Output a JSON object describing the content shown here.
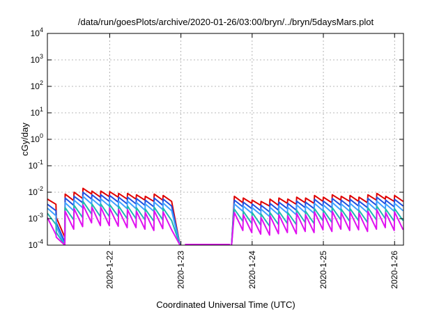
{
  "chart_data": {
    "type": "line",
    "title": "/data/run/goesPlots/archive/2020-01-26/03:00/bryn/../bryn/5daysMars.plot",
    "xlabel": "Coordinated Universal Time (UTC)",
    "ylabel": "cGy/day",
    "y_scale": "log",
    "ylim": [
      0.0001,
      10000
    ],
    "xlim": [
      "2020-01-21 03:00",
      "2020-01-26 03:00"
    ],
    "grid": true,
    "legend": "none",
    "y_ticks": [
      {
        "base": "10",
        "exp": "-4",
        "value": 0.0001
      },
      {
        "base": "10",
        "exp": "-3",
        "value": 0.001
      },
      {
        "base": "10",
        "exp": "-2",
        "value": 0.01
      },
      {
        "base": "10",
        "exp": "-1",
        "value": 0.1
      },
      {
        "base": "10",
        "exp": "0",
        "value": 1
      },
      {
        "base": "10",
        "exp": "1",
        "value": 10
      },
      {
        "base": "10",
        "exp": "2",
        "value": 100
      },
      {
        "base": "10",
        "exp": "3",
        "value": 1000
      },
      {
        "base": "10",
        "exp": "4",
        "value": 10000
      }
    ],
    "x_ticks": [
      {
        "label": "2020-1-22",
        "value": "2020-01-22 00:00"
      },
      {
        "label": "2020-1-23",
        "value": "2020-01-23 00:00"
      },
      {
        "label": "2020-1-24",
        "value": "2020-01-24 00:00"
      },
      {
        "label": "2020-1-25",
        "value": "2020-01-25 00:00"
      },
      {
        "label": "2020-1-26",
        "value": "2020-01-26 00:00"
      }
    ],
    "data_gap": [
      "2020-01-22 23:00",
      "2020-01-23 18:00"
    ],
    "sawtooth_period_hours": 3,
    "series": [
      {
        "color": "#e00000",
        "values": [
          [
            0.0055,
            0.0035
          ],
          [
            0.0011,
            0.0002
          ],
          [
            0.0085,
            0.0048
          ],
          [
            0.01,
            0.0058
          ],
          [
            0.014,
            0.0085
          ],
          [
            0.011,
            0.0065
          ],
          [
            0.011,
            0.0068
          ],
          [
            0.0105,
            0.0065
          ],
          [
            0.009,
            0.0055
          ],
          [
            0.009,
            0.0055
          ],
          [
            0.008,
            0.005
          ],
          [
            0.007,
            0.0045
          ],
          [
            0.0085,
            0.005
          ],
          [
            0.0075,
            0.0045
          ],
          [
            0.007,
            0.004
          ],
          [
            0.006,
            0.0038
          ],
          [
            0.005,
            0.0032
          ],
          [
            0.0045,
            0.003
          ],
          [
            0.0055,
            0.0032
          ],
          [
            0.006,
            0.0038
          ],
          [
            0.0055,
            0.0035
          ],
          [
            0.0065,
            0.004
          ],
          [
            0.006,
            0.0038
          ],
          [
            0.0075,
            0.0045
          ],
          [
            0.0065,
            0.004
          ],
          [
            0.008,
            0.005
          ],
          [
            0.007,
            0.0045
          ],
          [
            0.0075,
            0.0045
          ],
          [
            0.0065,
            0.004
          ],
          [
            0.008,
            0.005
          ],
          [
            0.009,
            0.0055
          ],
          [
            0.007,
            0.0045
          ],
          [
            0.0075,
            0.0045
          ],
          [
            0.0065,
            0.004
          ],
          [
            0.0065,
            0.004
          ],
          [
            0.0058,
            0.0036
          ]
        ]
      },
      {
        "color": "#1f4fe0",
        "values": [
          [
            0.0035,
            0.002
          ],
          [
            0.0007,
            0.00013
          ],
          [
            0.006,
            0.0032
          ],
          [
            0.007,
            0.004
          ],
          [
            0.01,
            0.0055
          ],
          [
            0.008,
            0.0045
          ],
          [
            0.008,
            0.0045
          ],
          [
            0.0075,
            0.0042
          ],
          [
            0.0065,
            0.0036
          ],
          [
            0.0065,
            0.0036
          ],
          [
            0.0058,
            0.0032
          ],
          [
            0.005,
            0.0028
          ],
          [
            0.006,
            0.0032
          ],
          [
            0.0055,
            0.003
          ],
          [
            0.005,
            0.0028
          ],
          [
            0.0042,
            0.0024
          ],
          [
            0.0036,
            0.002
          ],
          [
            0.0032,
            0.0018
          ],
          [
            0.0038,
            0.0021
          ],
          [
            0.0042,
            0.0024
          ],
          [
            0.0038,
            0.0021
          ],
          [
            0.0046,
            0.0026
          ],
          [
            0.0042,
            0.0024
          ],
          [
            0.0054,
            0.003
          ],
          [
            0.0046,
            0.0026
          ],
          [
            0.0058,
            0.0032
          ],
          [
            0.005,
            0.0028
          ],
          [
            0.0054,
            0.003
          ],
          [
            0.0046,
            0.0026
          ],
          [
            0.0058,
            0.0032
          ],
          [
            0.0065,
            0.0036
          ],
          [
            0.005,
            0.0028
          ],
          [
            0.0054,
            0.003
          ],
          [
            0.0046,
            0.0026
          ],
          [
            0.0046,
            0.0026
          ],
          [
            0.004,
            0.0022
          ]
        ]
      },
      {
        "color": "#3fa0ff",
        "values": [
          [
            0.0025,
            0.0013
          ],
          [
            0.0005,
            0.0001
          ],
          [
            0.004,
            0.002
          ],
          [
            0.005,
            0.0026
          ],
          [
            0.007,
            0.0036
          ],
          [
            0.0056,
            0.003
          ],
          [
            0.0056,
            0.003
          ],
          [
            0.0053,
            0.0028
          ],
          [
            0.0046,
            0.0024
          ],
          [
            0.0046,
            0.0024
          ],
          [
            0.0041,
            0.0021
          ],
          [
            0.0036,
            0.0019
          ],
          [
            0.0042,
            0.0022
          ],
          [
            0.0039,
            0.002
          ],
          [
            0.0036,
            0.0019
          ],
          [
            0.003,
            0.0016
          ],
          [
            0.0026,
            0.0014
          ],
          [
            0.0023,
            0.0012
          ],
          [
            0.0027,
            0.0014
          ],
          [
            0.003,
            0.0016
          ],
          [
            0.0027,
            0.0014
          ],
          [
            0.0033,
            0.0017
          ],
          [
            0.003,
            0.0016
          ],
          [
            0.0038,
            0.002
          ],
          [
            0.0033,
            0.0017
          ],
          [
            0.0041,
            0.0021
          ],
          [
            0.0036,
            0.0019
          ],
          [
            0.0038,
            0.002
          ],
          [
            0.0033,
            0.0017
          ],
          [
            0.0041,
            0.0021
          ],
          [
            0.0046,
            0.0024
          ],
          [
            0.0036,
            0.0019
          ],
          [
            0.0038,
            0.002
          ],
          [
            0.0033,
            0.0017
          ],
          [
            0.0033,
            0.0017
          ],
          [
            0.0028,
            0.0015
          ]
        ]
      },
      {
        "color": "#20b8b0",
        "values": [
          [
            0.0016,
            0.0006
          ],
          [
            0.0003,
            0.0001
          ],
          [
            0.0026,
            0.0009
          ],
          [
            0.0032,
            0.0011
          ],
          [
            0.0045,
            0.0015
          ],
          [
            0.0036,
            0.0012
          ],
          [
            0.0036,
            0.0012
          ],
          [
            0.0034,
            0.0012
          ],
          [
            0.003,
            0.001
          ],
          [
            0.003,
            0.001
          ],
          [
            0.0026,
            0.0009
          ],
          [
            0.0023,
            0.0008
          ],
          [
            0.0027,
            0.0009
          ],
          [
            0.0025,
            0.00085
          ],
          [
            0.0023,
            0.0008
          ],
          [
            0.0019,
            0.00066
          ],
          [
            0.0017,
            0.00058
          ],
          [
            0.0015,
            0.00052
          ],
          [
            0.0017,
            0.0006
          ],
          [
            0.0019,
            0.00066
          ],
          [
            0.0017,
            0.0006
          ],
          [
            0.0021,
            0.00072
          ],
          [
            0.0019,
            0.00066
          ],
          [
            0.0024,
            0.00084
          ],
          [
            0.0021,
            0.00072
          ],
          [
            0.0026,
            0.0009
          ],
          [
            0.0023,
            0.0008
          ],
          [
            0.0024,
            0.00084
          ],
          [
            0.0021,
            0.00072
          ],
          [
            0.0026,
            0.0009
          ],
          [
            0.003,
            0.001
          ],
          [
            0.0023,
            0.0008
          ],
          [
            0.0024,
            0.00084
          ],
          [
            0.0021,
            0.00072
          ],
          [
            0.0021,
            0.00072
          ],
          [
            0.0018,
            0.00062
          ]
        ]
      },
      {
        "color": "#e010f0",
        "values": [
          [
            0.0011,
            0.00025
          ],
          [
            0.0002,
            0.0001
          ],
          [
            0.0019,
            0.0004
          ],
          [
            0.0024,
            0.0005
          ],
          [
            0.0033,
            0.0007
          ],
          [
            0.0027,
            0.00055
          ],
          [
            0.0027,
            0.00055
          ],
          [
            0.0025,
            0.00052
          ],
          [
            0.0022,
            0.00046
          ],
          [
            0.0022,
            0.00046
          ],
          [
            0.0019,
            0.0004
          ],
          [
            0.0017,
            0.00036
          ],
          [
            0.002,
            0.00042
          ],
          [
            0.0018,
            0.00038
          ],
          [
            0.0017,
            0.00036
          ],
          [
            0.0014,
            0.0003
          ],
          [
            0.0012,
            0.00026
          ],
          [
            0.0011,
            0.00024
          ],
          [
            0.0013,
            0.00027
          ],
          [
            0.0014,
            0.0003
          ],
          [
            0.0013,
            0.00027
          ],
          [
            0.0016,
            0.00033
          ],
          [
            0.0014,
            0.0003
          ],
          [
            0.0018,
            0.00038
          ],
          [
            0.0016,
            0.00033
          ],
          [
            0.0019,
            0.0004
          ],
          [
            0.0017,
            0.00036
          ],
          [
            0.0018,
            0.00038
          ],
          [
            0.0016,
            0.00033
          ],
          [
            0.0019,
            0.0004
          ],
          [
            0.0022,
            0.00046
          ],
          [
            0.0017,
            0.00036
          ],
          [
            0.0018,
            0.00038
          ],
          [
            0.0016,
            0.00033
          ],
          [
            0.0016,
            0.00033
          ],
          [
            0.0013,
            0.00028
          ]
        ]
      }
    ]
  }
}
